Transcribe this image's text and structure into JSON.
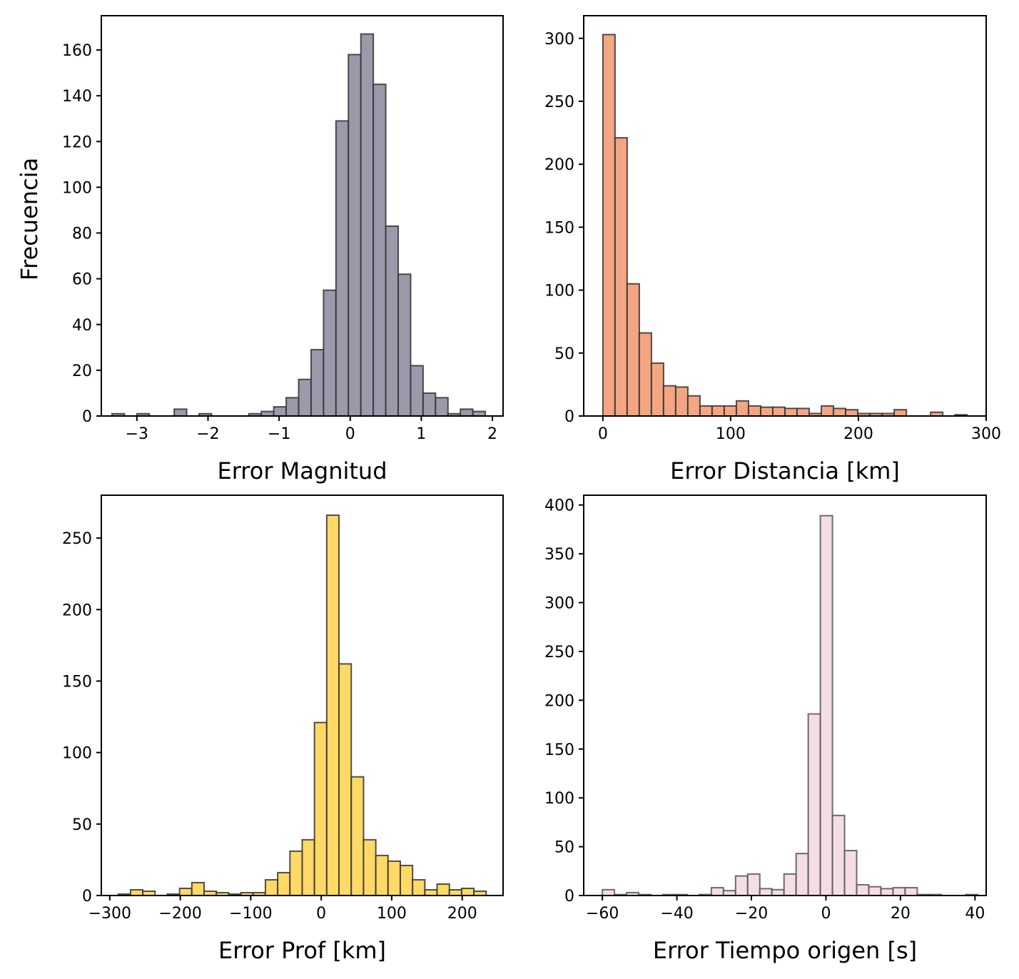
{
  "figure": {
    "ylabel": "Frecuencia"
  },
  "chart_data": [
    {
      "type": "bar",
      "title": "",
      "xlabel": "Error Magnitud",
      "ylabel": "Frecuencia",
      "xlim": [
        -3.5,
        2.15
      ],
      "ylim": [
        0,
        175
      ],
      "xticks": [
        -3,
        -2,
        -1,
        0,
        1,
        2
      ],
      "xtick_labels": [
        "−3",
        "−2",
        "−1",
        "0",
        "1",
        "2"
      ],
      "yticks": [
        0,
        20,
        40,
        60,
        80,
        100,
        120,
        140,
        160
      ],
      "ytick_labels": [
        "0",
        "20",
        "40",
        "60",
        "80",
        "100",
        "120",
        "140",
        "160"
      ],
      "bin_start": -3.35,
      "bin_width": 0.175,
      "values": [
        1,
        0,
        1,
        0,
        0,
        3,
        0,
        1,
        0,
        0,
        0,
        1,
        2,
        4,
        8,
        16,
        29,
        55,
        129,
        158,
        167,
        145,
        83,
        62,
        22,
        10,
        8,
        1,
        3,
        2
      ],
      "color": "#9b9aab",
      "edge_color": "#333333",
      "grid": false
    },
    {
      "type": "bar",
      "title": "",
      "xlabel": "Error Distancia [km]",
      "ylabel": "",
      "xlim": [
        -15,
        300
      ],
      "ylim": [
        0,
        318
      ],
      "xticks": [
        0,
        100,
        200,
        300
      ],
      "xtick_labels": [
        "0",
        "100",
        "200",
        "300"
      ],
      "yticks": [
        0,
        50,
        100,
        150,
        200,
        250,
        300
      ],
      "ytick_labels": [
        "0",
        "50",
        "100",
        "150",
        "200",
        "250",
        "300"
      ],
      "bin_start": 0,
      "bin_width": 9.5,
      "values": [
        303,
        221,
        105,
        66,
        42,
        24,
        23,
        16,
        8,
        8,
        8,
        12,
        8,
        7,
        7,
        6,
        6,
        2,
        8,
        6,
        5,
        2,
        2,
        2,
        5,
        0,
        0,
        3,
        0,
        1
      ],
      "color": "#f4a582",
      "edge_color": "#333333",
      "grid": false
    },
    {
      "type": "bar",
      "title": "",
      "xlabel": "Error Prof [km]",
      "ylabel": "",
      "xlim": [
        -312,
        258
      ],
      "ylim": [
        0,
        280
      ],
      "xticks": [
        -300,
        -200,
        -100,
        0,
        100,
        200
      ],
      "xtick_labels": [
        "−300",
        "−200",
        "−100",
        "0",
        "100",
        "200"
      ],
      "yticks": [
        0,
        50,
        100,
        150,
        200,
        250
      ],
      "ytick_labels": [
        "0",
        "50",
        "100",
        "150",
        "200",
        "250"
      ],
      "bin_start": -288,
      "bin_width": 17.4,
      "values": [
        1,
        4,
        3,
        0,
        1,
        5,
        9,
        3,
        2,
        1,
        2,
        2,
        11,
        16,
        31,
        39,
        121,
        266,
        162,
        83,
        39,
        28,
        24,
        21,
        11,
        4,
        8,
        4,
        5,
        3
      ],
      "color": "#ffd966",
      "edge_color": "#333333",
      "grid": false
    },
    {
      "type": "bar",
      "title": "",
      "xlabel": "Error Tiempo origen [s]",
      "ylabel": "",
      "xlim": [
        -65,
        43
      ],
      "ylim": [
        0,
        410
      ],
      "xticks": [
        -60,
        -40,
        -20,
        0,
        20,
        40
      ],
      "xtick_labels": [
        "−60",
        "−40",
        "−20",
        "0",
        "20",
        "40"
      ],
      "yticks": [
        0,
        50,
        100,
        150,
        200,
        250,
        300,
        350,
        400
      ],
      "ytick_labels": [
        "0",
        "50",
        "100",
        "150",
        "200",
        "250",
        "300",
        "350",
        "400"
      ],
      "bin_start": -60,
      "bin_width": 3.25,
      "values": [
        6,
        1,
        3,
        1,
        0,
        1,
        1,
        0,
        1,
        8,
        5,
        20,
        22,
        7,
        6,
        22,
        43,
        186,
        389,
        82,
        46,
        11,
        9,
        7,
        8,
        8,
        1,
        1,
        0,
        0,
        1
      ],
      "color": "#f4dde3",
      "edge_color": "#555555",
      "grid": false
    }
  ]
}
